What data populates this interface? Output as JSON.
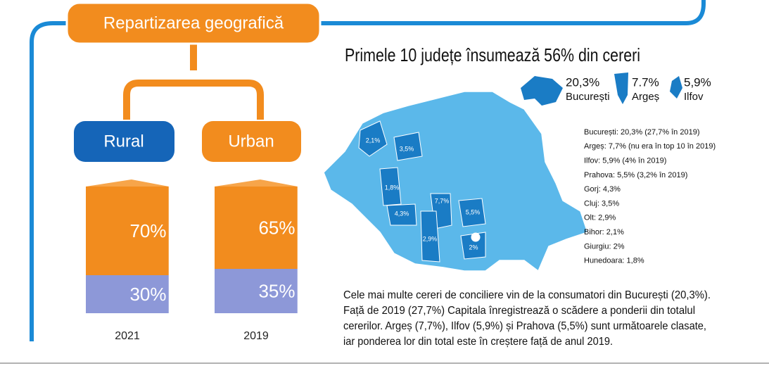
{
  "header": {
    "title": "Repartizarea geografică"
  },
  "chart_data": {
    "type": "bar",
    "stacked": true,
    "categories": [
      "2021",
      "2019"
    ],
    "series": [
      {
        "name": "Rural",
        "color": "#8d98d8",
        "values": [
          30,
          35
        ],
        "value_labels": [
          "30%",
          "35%"
        ]
      },
      {
        "name": "Urban",
        "color": "#f28c1e",
        "values": [
          70,
          65
        ],
        "value_labels": [
          "70%",
          "65%"
        ]
      }
    ]
  },
  "map": {
    "title": "Primele 10 județe însumează 56% din cereri",
    "highlights": [
      {
        "value": "20,3%",
        "name": "București"
      },
      {
        "value": "7.7%",
        "name": "Argeș"
      },
      {
        "value": "5,9%",
        "name": "Ilfov"
      }
    ],
    "county_labels": [
      "2,1%",
      "3,5%",
      "1,8%",
      "4,3%",
      "7,7%",
      "5,5%",
      "2,9%",
      "2%"
    ],
    "list": [
      "București: 20,3% (27,7% în 2019)",
      "Argeș: 7,7% (nu era în top 10 în 2019)",
      "Ilfov: 5,9% (4% în 2019)",
      "Prahova: 5,5% (3,2% în 2019)",
      "Gorj: 4,3%",
      "Cluj: 3,5%",
      "Olt: 2,9%",
      "Bihor: 2,1%",
      "Giurgiu: 2%",
      "Hunedoara: 1,8%"
    ]
  },
  "paragraph": [
    "Cele mai multe cereri de conciliere vin de la consumatori din București (20,3%).",
    "Față de 2019 (27,7%) Capitala înregistrează o scădere a ponderii din totalul",
    "cererilor. Argeș (7,7%), Ilfov (5,9%) și Prahova (5,5%) sunt următoarele clasate,",
    "iar ponderea lor din total este în creștere față de anul 2019."
  ]
}
